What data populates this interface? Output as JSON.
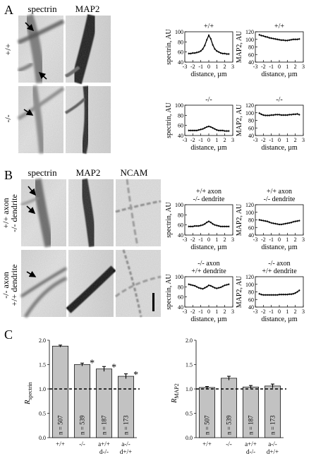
{
  "panels": {
    "A": {
      "letter": "A",
      "col_headers": [
        "spectrin",
        "MAP2"
      ],
      "row_labels": [
        "+/+",
        "-/-"
      ]
    },
    "B": {
      "letter": "B",
      "col_headers": [
        "spectrin",
        "MAP2",
        "NCAM"
      ],
      "row_labels": [
        [
          "+/+ axon",
          "-/- dendrite"
        ],
        [
          "-/- axon",
          "+/+ dendrite"
        ]
      ]
    },
    "C": {
      "letter": "C"
    }
  },
  "chart_data": [
    {
      "id": "A-spectrin-wt",
      "type": "line",
      "title": "+/+",
      "xlabel": "distance, µm",
      "ylabel": "spectrin, AU",
      "xlim": [
        -3,
        3
      ],
      "ylim": [
        40,
        100
      ],
      "xticks": [
        -3,
        -2,
        -1,
        0,
        1,
        2,
        3
      ],
      "yticks": [
        40,
        60,
        80,
        100
      ],
      "x": [
        -2.5,
        -2.25,
        -2,
        -1.75,
        -1.5,
        -1.25,
        -1,
        -0.75,
        -0.5,
        -0.25,
        0,
        0.25,
        0.5,
        0.75,
        1,
        1.25,
        1.5,
        1.75,
        2,
        2.25,
        2.5
      ],
      "y": [
        57,
        57,
        58,
        58,
        59,
        60,
        62,
        66,
        73,
        84,
        93,
        86,
        74,
        66,
        62,
        60,
        58,
        57,
        57,
        56,
        56
      ]
    },
    {
      "id": "A-map2-wt",
      "type": "line",
      "title": "+/+",
      "xlabel": "distance, µm",
      "ylabel": "MAP2, AU",
      "xlim": [
        -3,
        3
      ],
      "ylim": [
        40,
        120
      ],
      "xticks": [
        -3,
        -2,
        -1,
        0,
        1,
        2,
        3
      ],
      "yticks": [
        40,
        60,
        80,
        100,
        120
      ],
      "x": [
        -2.5,
        -2.25,
        -2,
        -1.75,
        -1.5,
        -1.25,
        -1,
        -0.75,
        -0.5,
        -0.25,
        0,
        0.25,
        0.5,
        0.75,
        1,
        1.25,
        1.5,
        1.75,
        2,
        2.25,
        2.5
      ],
      "y": [
        112,
        110,
        109,
        107,
        106,
        104,
        103,
        102,
        101,
        100,
        99,
        98,
        98,
        97,
        97,
        98,
        99,
        100,
        100,
        100,
        101
      ]
    },
    {
      "id": "A-spectrin-ko",
      "type": "line",
      "title": "-/-",
      "xlabel": "distance, µm",
      "ylabel": "spectrin, AU",
      "xlim": [
        -3,
        3
      ],
      "ylim": [
        40,
        100
      ],
      "xticks": [
        -3,
        -2,
        -1,
        0,
        1,
        2,
        3
      ],
      "yticks": [
        40,
        60,
        80,
        100
      ],
      "x": [
        -2.5,
        -2.25,
        -2,
        -1.75,
        -1.5,
        -1.25,
        -1,
        -0.75,
        -0.5,
        -0.25,
        0,
        0.25,
        0.5,
        0.75,
        1,
        1.25,
        1.5,
        1.75,
        2,
        2.25,
        2.5
      ],
      "y": [
        50,
        50,
        50,
        50,
        50,
        51,
        52,
        53,
        55,
        57,
        58,
        57,
        55,
        53,
        51,
        50,
        50,
        50,
        49,
        49,
        49
      ]
    },
    {
      "id": "A-map2-ko",
      "type": "line",
      "title": "-/-",
      "xlabel": "distance, µm",
      "ylabel": "MAP2, AU",
      "xlim": [
        -3,
        3
      ],
      "ylim": [
        40,
        120
      ],
      "xticks": [
        -3,
        -2,
        -1,
        0,
        1,
        2,
        3
      ],
      "yticks": [
        40,
        60,
        80,
        100,
        120
      ],
      "x": [
        -2.5,
        -2.25,
        -2,
        -1.75,
        -1.5,
        -1.25,
        -1,
        -0.75,
        -0.5,
        -0.25,
        0,
        0.25,
        0.5,
        0.75,
        1,
        1.25,
        1.5,
        1.75,
        2,
        2.25,
        2.5
      ],
      "y": [
        99,
        96,
        94,
        93,
        93,
        93,
        94,
        94,
        95,
        95,
        95,
        94,
        94,
        94,
        94,
        95,
        95,
        96,
        96,
        97,
        95
      ]
    },
    {
      "id": "B-spectrin-wtaxon",
      "type": "line",
      "title": [
        "+/+ axon",
        "-/- dendrite"
      ],
      "xlabel": "distance, µm",
      "ylabel": "spectrin, AU",
      "xlim": [
        -3,
        3
      ],
      "ylim": [
        40,
        100
      ],
      "xticks": [
        -3,
        -2,
        -1,
        0,
        1,
        2,
        3
      ],
      "yticks": [
        40,
        60,
        80,
        100
      ],
      "x": [
        -2.5,
        -2.25,
        -2,
        -1.75,
        -1.5,
        -1.25,
        -1,
        -0.75,
        -0.5,
        -0.25,
        0,
        0.25,
        0.5,
        0.75,
        1,
        1.25,
        1.5,
        1.75,
        2,
        2.25,
        2.5
      ],
      "y": [
        57,
        57,
        57,
        58,
        58,
        58,
        59,
        60,
        62,
        65,
        67,
        65,
        62,
        60,
        59,
        58,
        57,
        57,
        57,
        57,
        57
      ]
    },
    {
      "id": "B-map2-wtaxon",
      "type": "line",
      "title": [
        "+/+ axon",
        "-/- dendrite"
      ],
      "xlabel": "distance, µm",
      "ylabel": "MAP2, AU",
      "xlim": [
        -3,
        3
      ],
      "ylim": [
        40,
        120
      ],
      "xticks": [
        -3,
        -2,
        -1,
        0,
        1,
        2,
        3
      ],
      "yticks": [
        40,
        60,
        80,
        100,
        120
      ],
      "x": [
        -2.5,
        -2.25,
        -2,
        -1.75,
        -1.5,
        -1.25,
        -1,
        -0.75,
        -0.5,
        -0.25,
        0,
        0.25,
        0.5,
        0.75,
        1,
        1.25,
        1.5,
        1.75,
        2,
        2.25,
        2.5
      ],
      "y": [
        80,
        79,
        78,
        77,
        76,
        74,
        72,
        71,
        70,
        69,
        68,
        68,
        69,
        70,
        71,
        72,
        73,
        75,
        76,
        77,
        78
      ]
    },
    {
      "id": "B-spectrin-koaxon",
      "type": "line",
      "title": [
        "-/- axon",
        "+/+ dendrite"
      ],
      "xlabel": "distance, µm",
      "ylabel": "spectrin, AU",
      "xlim": [
        -3,
        3
      ],
      "ylim": [
        40,
        100
      ],
      "xticks": [
        -3,
        -2,
        -1,
        0,
        1,
        2,
        3
      ],
      "yticks": [
        40,
        60,
        80,
        100
      ],
      "x": [
        -2.5,
        -2.25,
        -2,
        -1.75,
        -1.5,
        -1.25,
        -1,
        -0.75,
        -0.5,
        -0.25,
        0,
        0.25,
        0.5,
        0.75,
        1,
        1.25,
        1.5,
        1.75,
        2,
        2.25,
        2.5
      ],
      "y": [
        85,
        84,
        83,
        82,
        80,
        78,
        77,
        76,
        78,
        80,
        83,
        82,
        80,
        78,
        77,
        78,
        79,
        81,
        83,
        84,
        85
      ]
    },
    {
      "id": "B-map2-koaxon",
      "type": "line",
      "title": [
        "-/- axon",
        "+/+ dendrite"
      ],
      "xlabel": "distance, µm",
      "ylabel": "MAP2, AU",
      "xlim": [
        -3,
        3
      ],
      "ylim": [
        40,
        120
      ],
      "xticks": [
        -3,
        -2,
        -1,
        0,
        1,
        2,
        3
      ],
      "yticks": [
        40,
        60,
        80,
        100,
        120
      ],
      "x": [
        -2.5,
        -2.25,
        -2,
        -1.75,
        -1.5,
        -1.25,
        -1,
        -0.75,
        -0.5,
        -0.25,
        0,
        0.25,
        0.5,
        0.75,
        1,
        1.25,
        1.5,
        1.75,
        2,
        2.25,
        2.5
      ],
      "y": [
        75,
        73,
        72,
        72,
        72,
        72,
        72,
        72,
        72,
        72,
        73,
        73,
        73,
        73,
        73,
        74,
        74,
        75,
        77,
        80,
        84
      ]
    },
    {
      "id": "C-spectrin",
      "type": "bar",
      "ylabel_main": "R",
      "ylabel_sub": "spectrin",
      "ylim": [
        0,
        2.0
      ],
      "yticks": [
        "0.0",
        "0.5",
        "1.0",
        "1.5",
        "2.0"
      ],
      "categories": [
        [
          "+/+"
        ],
        [
          "-/-"
        ],
        [
          "a+/+",
          "d-/-"
        ],
        [
          "a-/-",
          "d+/+"
        ]
      ],
      "values": [
        1.88,
        1.5,
        1.41,
        1.26
      ],
      "errors": [
        0.02,
        0.03,
        0.05,
        0.05
      ],
      "n_labels": [
        "n = 507",
        "n = 539",
        "n = 187",
        "n = 173"
      ],
      "significance": [
        "",
        "*",
        "*",
        "*"
      ],
      "reference_line": 1.0
    },
    {
      "id": "C-map2",
      "type": "bar",
      "ylabel_main": "R",
      "ylabel_sub": "MAP2",
      "ylim": [
        0,
        2.0
      ],
      "yticks": [
        "0.0",
        "0.5",
        "1.0",
        "1.5",
        "2.0"
      ],
      "categories": [
        [
          "+/+"
        ],
        [
          "-/-"
        ],
        [
          "a+/+",
          "d-/-"
        ],
        [
          "a-/-",
          "d+/+"
        ]
      ],
      "values": [
        1.03,
        1.22,
        1.04,
        1.06
      ],
      "errors": [
        0.02,
        0.04,
        0.03,
        0.04
      ],
      "n_labels": [
        "n = 507",
        "n = 539",
        "n = 187",
        "n = 173"
      ],
      "significance": [
        "",
        "",
        "",
        ""
      ],
      "reference_line": 1.0
    }
  ]
}
